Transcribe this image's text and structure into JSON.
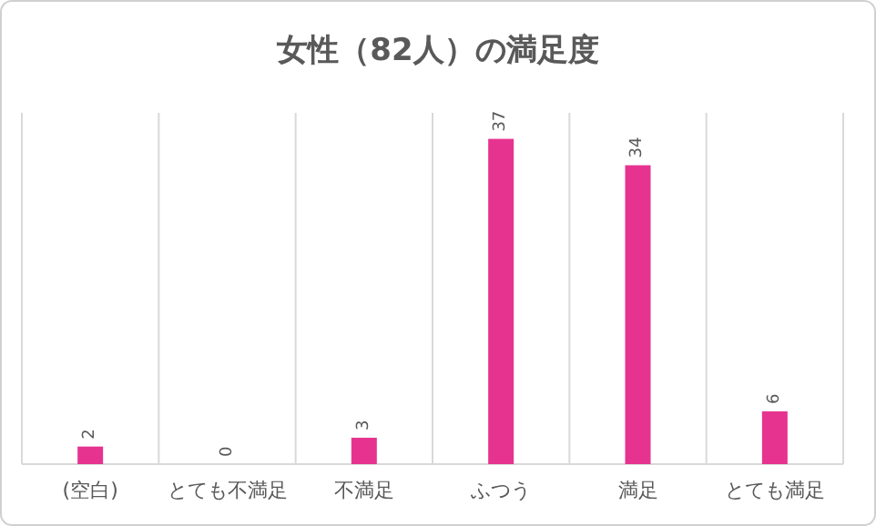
{
  "chart_data": {
    "type": "bar",
    "title": "女性（82人）の満足度",
    "categories": [
      "(空白)",
      "とても不満足",
      "不満足",
      "ふつう",
      "満足",
      "とても満足"
    ],
    "values": [
      2,
      0,
      3,
      37,
      34,
      6
    ],
    "color": "#e6338f",
    "data_labels": true,
    "grid": "x"
  }
}
